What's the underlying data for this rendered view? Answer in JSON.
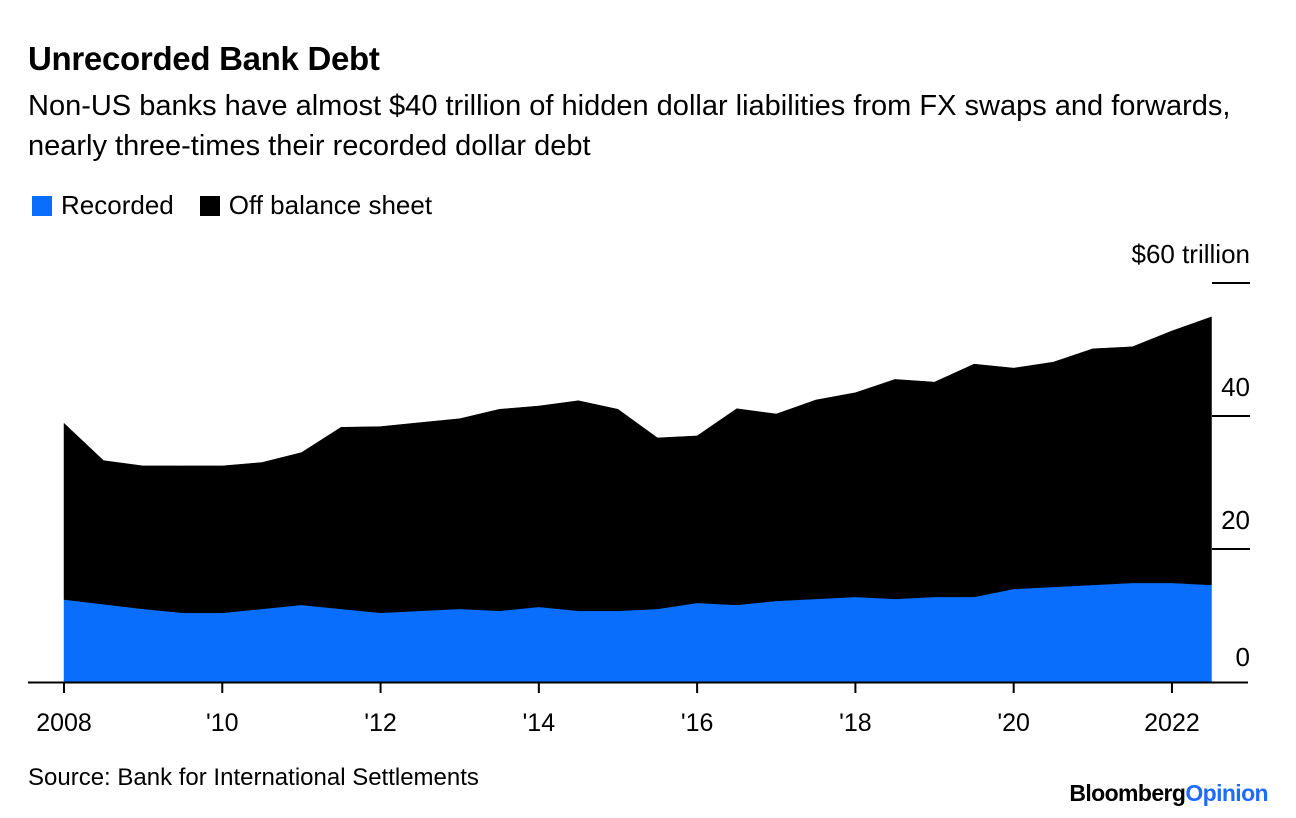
{
  "header": {
    "title": "Unrecorded Bank Debt",
    "subtitle": "Non-US banks have almost $40 trillion of hidden dollar liabilities from FX swaps and forwards, nearly three-times their recorded dollar debt"
  },
  "legend": [
    {
      "label": "Recorded",
      "color": "#0a6efd"
    },
    {
      "label": "Off balance sheet",
      "color": "#000000"
    }
  ],
  "footer": {
    "source": "Source: Bank for International Settlements",
    "brand_part1": "Bloomberg",
    "brand_part2": "Opinion"
  },
  "chart_data": {
    "type": "area",
    "stacked": true,
    "x_label_texts": [
      "2008",
      "'10",
      "'12",
      "'14",
      "'16",
      "'18",
      "'20",
      "2022"
    ],
    "x_label_positions": [
      2008,
      2010,
      2012,
      2014,
      2016,
      2018,
      2020,
      2022
    ],
    "y_tick_texts": [
      "$60 trillion",
      "40",
      "20",
      "0"
    ],
    "y_tick_values": [
      60,
      40,
      20,
      0
    ],
    "xlim": [
      2007.55,
      2023.4
    ],
    "ylim": [
      0,
      60
    ],
    "x": [
      2008.0,
      2008.5,
      2009.0,
      2009.5,
      2010.0,
      2010.5,
      2011.0,
      2011.5,
      2012.0,
      2012.5,
      2013.0,
      2013.5,
      2014.0,
      2014.5,
      2015.0,
      2015.5,
      2016.0,
      2016.5,
      2017.0,
      2017.5,
      2018.0,
      2018.5,
      2019.0,
      2019.5,
      2020.0,
      2020.5,
      2021.0,
      2021.5,
      2022.0,
      2022.5
    ],
    "series": [
      {
        "name": "Recorded",
        "color": "#0a6efd",
        "values": [
          12.4,
          11.7,
          11.0,
          10.4,
          10.4,
          11.0,
          11.6,
          11.0,
          10.4,
          10.7,
          11.0,
          10.7,
          11.3,
          10.7,
          10.7,
          11.0,
          11.9,
          11.6,
          12.2,
          12.5,
          12.8,
          12.5,
          12.8,
          12.8,
          14.0,
          14.3,
          14.6,
          14.9,
          14.9,
          14.6
        ]
      },
      {
        "name": "Off balance sheet",
        "color": "#000000",
        "values": [
          26.5,
          21.6,
          21.5,
          22.1,
          22.1,
          22.0,
          22.9,
          27.3,
          28.0,
          28.3,
          28.6,
          30.3,
          30.2,
          31.6,
          30.3,
          25.7,
          25.1,
          29.5,
          28.1,
          29.9,
          30.7,
          33.0,
          32.3,
          35.0,
          33.2,
          33.8,
          35.5,
          35.5,
          37.9,
          40.3
        ]
      }
    ],
    "grid": false,
    "legend_position": "top-left"
  }
}
